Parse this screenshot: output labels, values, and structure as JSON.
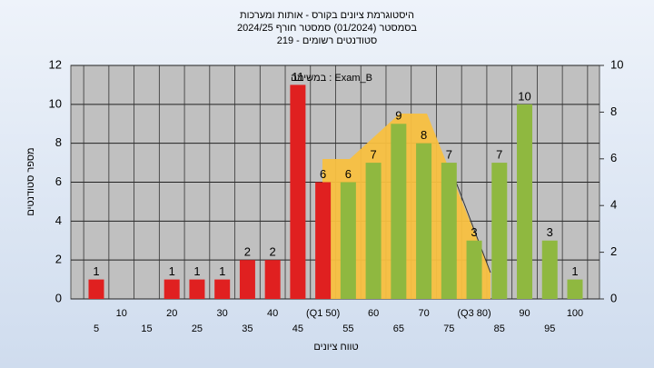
{
  "chart_data": {
    "type": "bar",
    "title": [
      "היסטוגרמת ציונים בקורס - אותות ומערכות",
      "בסמסטר  (01/2024)  סמסטר חורף 2024/25",
      "סטודנטים רשומים - 219"
    ],
    "annotation": "במשימה : Exam_B",
    "x_label": "טווח ציונים",
    "y_label": "מספר סטודנטים",
    "categories": [
      "5",
      "10",
      "15",
      "20",
      "25",
      "30",
      "35",
      "40",
      "45",
      "(Q1 50)",
      "55",
      "60",
      "65",
      "70",
      "75",
      "(Q3 80)",
      "85",
      "90",
      "95",
      "100"
    ],
    "values": [
      1,
      0,
      0,
      1,
      1,
      1,
      2,
      2,
      11,
      6,
      6,
      7,
      9,
      8,
      7,
      3,
      7,
      10,
      3,
      1
    ],
    "colors": [
      "#e02020",
      "#e02020",
      "#e02020",
      "#e02020",
      "#e02020",
      "#e02020",
      "#e02020",
      "#e02020",
      "#e02020",
      "#e02020",
      "#8fb840",
      "#8fb840",
      "#8fb840",
      "#8fb840",
      "#8fb840",
      "#8fb840",
      "#8fb840",
      "#8fb840",
      "#8fb840",
      "#8fb840"
    ],
    "ylim": [
      0,
      12
    ],
    "yticks": [
      0,
      2,
      4,
      6,
      8,
      10,
      12
    ],
    "y2lim": [
      0,
      10
    ],
    "y2ticks": [
      0,
      2,
      4,
      6,
      8,
      10
    ],
    "grid": true
  }
}
